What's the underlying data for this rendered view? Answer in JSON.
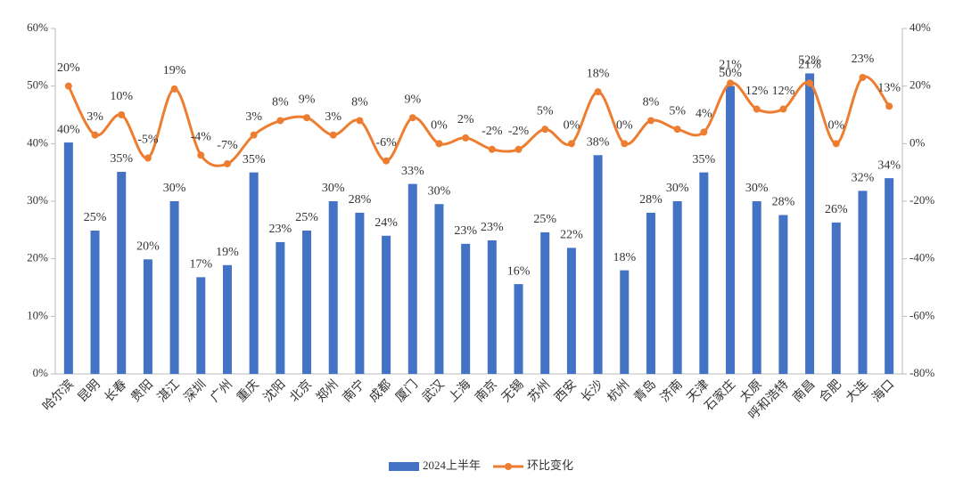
{
  "chart_data": {
    "type": "bar-line",
    "categories": [
      "哈尔滨",
      "昆明",
      "长春",
      "贵阳",
      "湛江",
      "深圳",
      "广州",
      "重庆",
      "沈阳",
      "北京",
      "郑州",
      "南宁",
      "成都",
      "厦门",
      "武汉",
      "上海",
      "南京",
      "无锡",
      "苏州",
      "西安",
      "长沙",
      "杭州",
      "青岛",
      "济南",
      "天津",
      "石家庄",
      "太原",
      "呼和浩特",
      "南昌",
      "合肥",
      "大连",
      "海口"
    ],
    "series": [
      {
        "name": "2024上半年",
        "color": "#4472c4",
        "type": "bar",
        "values": [
          40.2,
          24.9,
          35.1,
          19.9,
          30,
          16.8,
          18.9,
          35,
          22.9,
          24.9,
          30,
          28,
          24,
          33,
          29.5,
          22.6,
          23.2,
          15.6,
          24.6,
          21.9,
          38,
          18,
          28,
          30,
          35,
          50,
          30,
          27.6,
          52.2,
          26.3,
          31.8,
          34
        ],
        "value_labels": [
          "40%",
          "25%",
          "35%",
          "20%",
          "30%",
          "17%",
          "19%",
          "35%",
          "23%",
          "25%",
          "30%",
          "28%",
          "24%",
          "33%",
          "30%",
          "23%",
          "23%",
          "16%",
          "25%",
          "22%",
          "38%",
          "18%",
          "28%",
          "30%",
          "35%",
          "50%",
          "30%",
          "28%",
          "52%",
          "26%",
          "32%",
          "34%"
        ]
      },
      {
        "name": "环比变化",
        "color": "#ed7d31",
        "type": "line",
        "axis": "y2",
        "values": [
          20,
          3,
          10,
          -5,
          19,
          -4,
          -7,
          3,
          8,
          9,
          3,
          8,
          -6,
          9,
          0,
          2,
          -2,
          -2,
          5,
          0,
          18,
          0,
          8,
          5,
          4,
          21,
          12,
          12,
          21,
          0,
          23,
          13
        ],
        "value_labels": [
          "20%",
          "3%",
          "10%",
          "-5%",
          "19%",
          "-4%",
          "-7%",
          "3%",
          "8%",
          "9%",
          "3%",
          "8%",
          "-6%",
          "9%",
          "0%",
          "2%",
          "-2%",
          "-2%",
          "5%",
          "0%",
          "18%",
          "0%",
          "8%",
          "5%",
          "4%",
          "21%",
          "12%",
          "12%",
          "21%",
          "0%",
          "23%",
          "13%"
        ]
      }
    ],
    "ylim": [
      0,
      60
    ],
    "yticks": [
      {
        "value": 0,
        "label": "0%"
      },
      {
        "value": 10,
        "label": "10%"
      },
      {
        "value": 20,
        "label": "20%"
      },
      {
        "value": 30,
        "label": "30%"
      },
      {
        "value": 40,
        "label": "40%"
      },
      {
        "value": 50,
        "label": "50%"
      },
      {
        "value": 60,
        "label": "60%"
      }
    ],
    "y2lim": [
      -80,
      40
    ],
    "y2ticks": [
      {
        "value": -80,
        "label": "-80%"
      },
      {
        "value": -60,
        "label": "-60%"
      },
      {
        "value": -40,
        "label": "-40%"
      },
      {
        "value": -20,
        "label": "-20%"
      },
      {
        "value": 0,
        "label": "0%"
      },
      {
        "value": 20,
        "label": "20%"
      },
      {
        "value": 40,
        "label": "40%"
      }
    ],
    "legend": "bottom"
  }
}
